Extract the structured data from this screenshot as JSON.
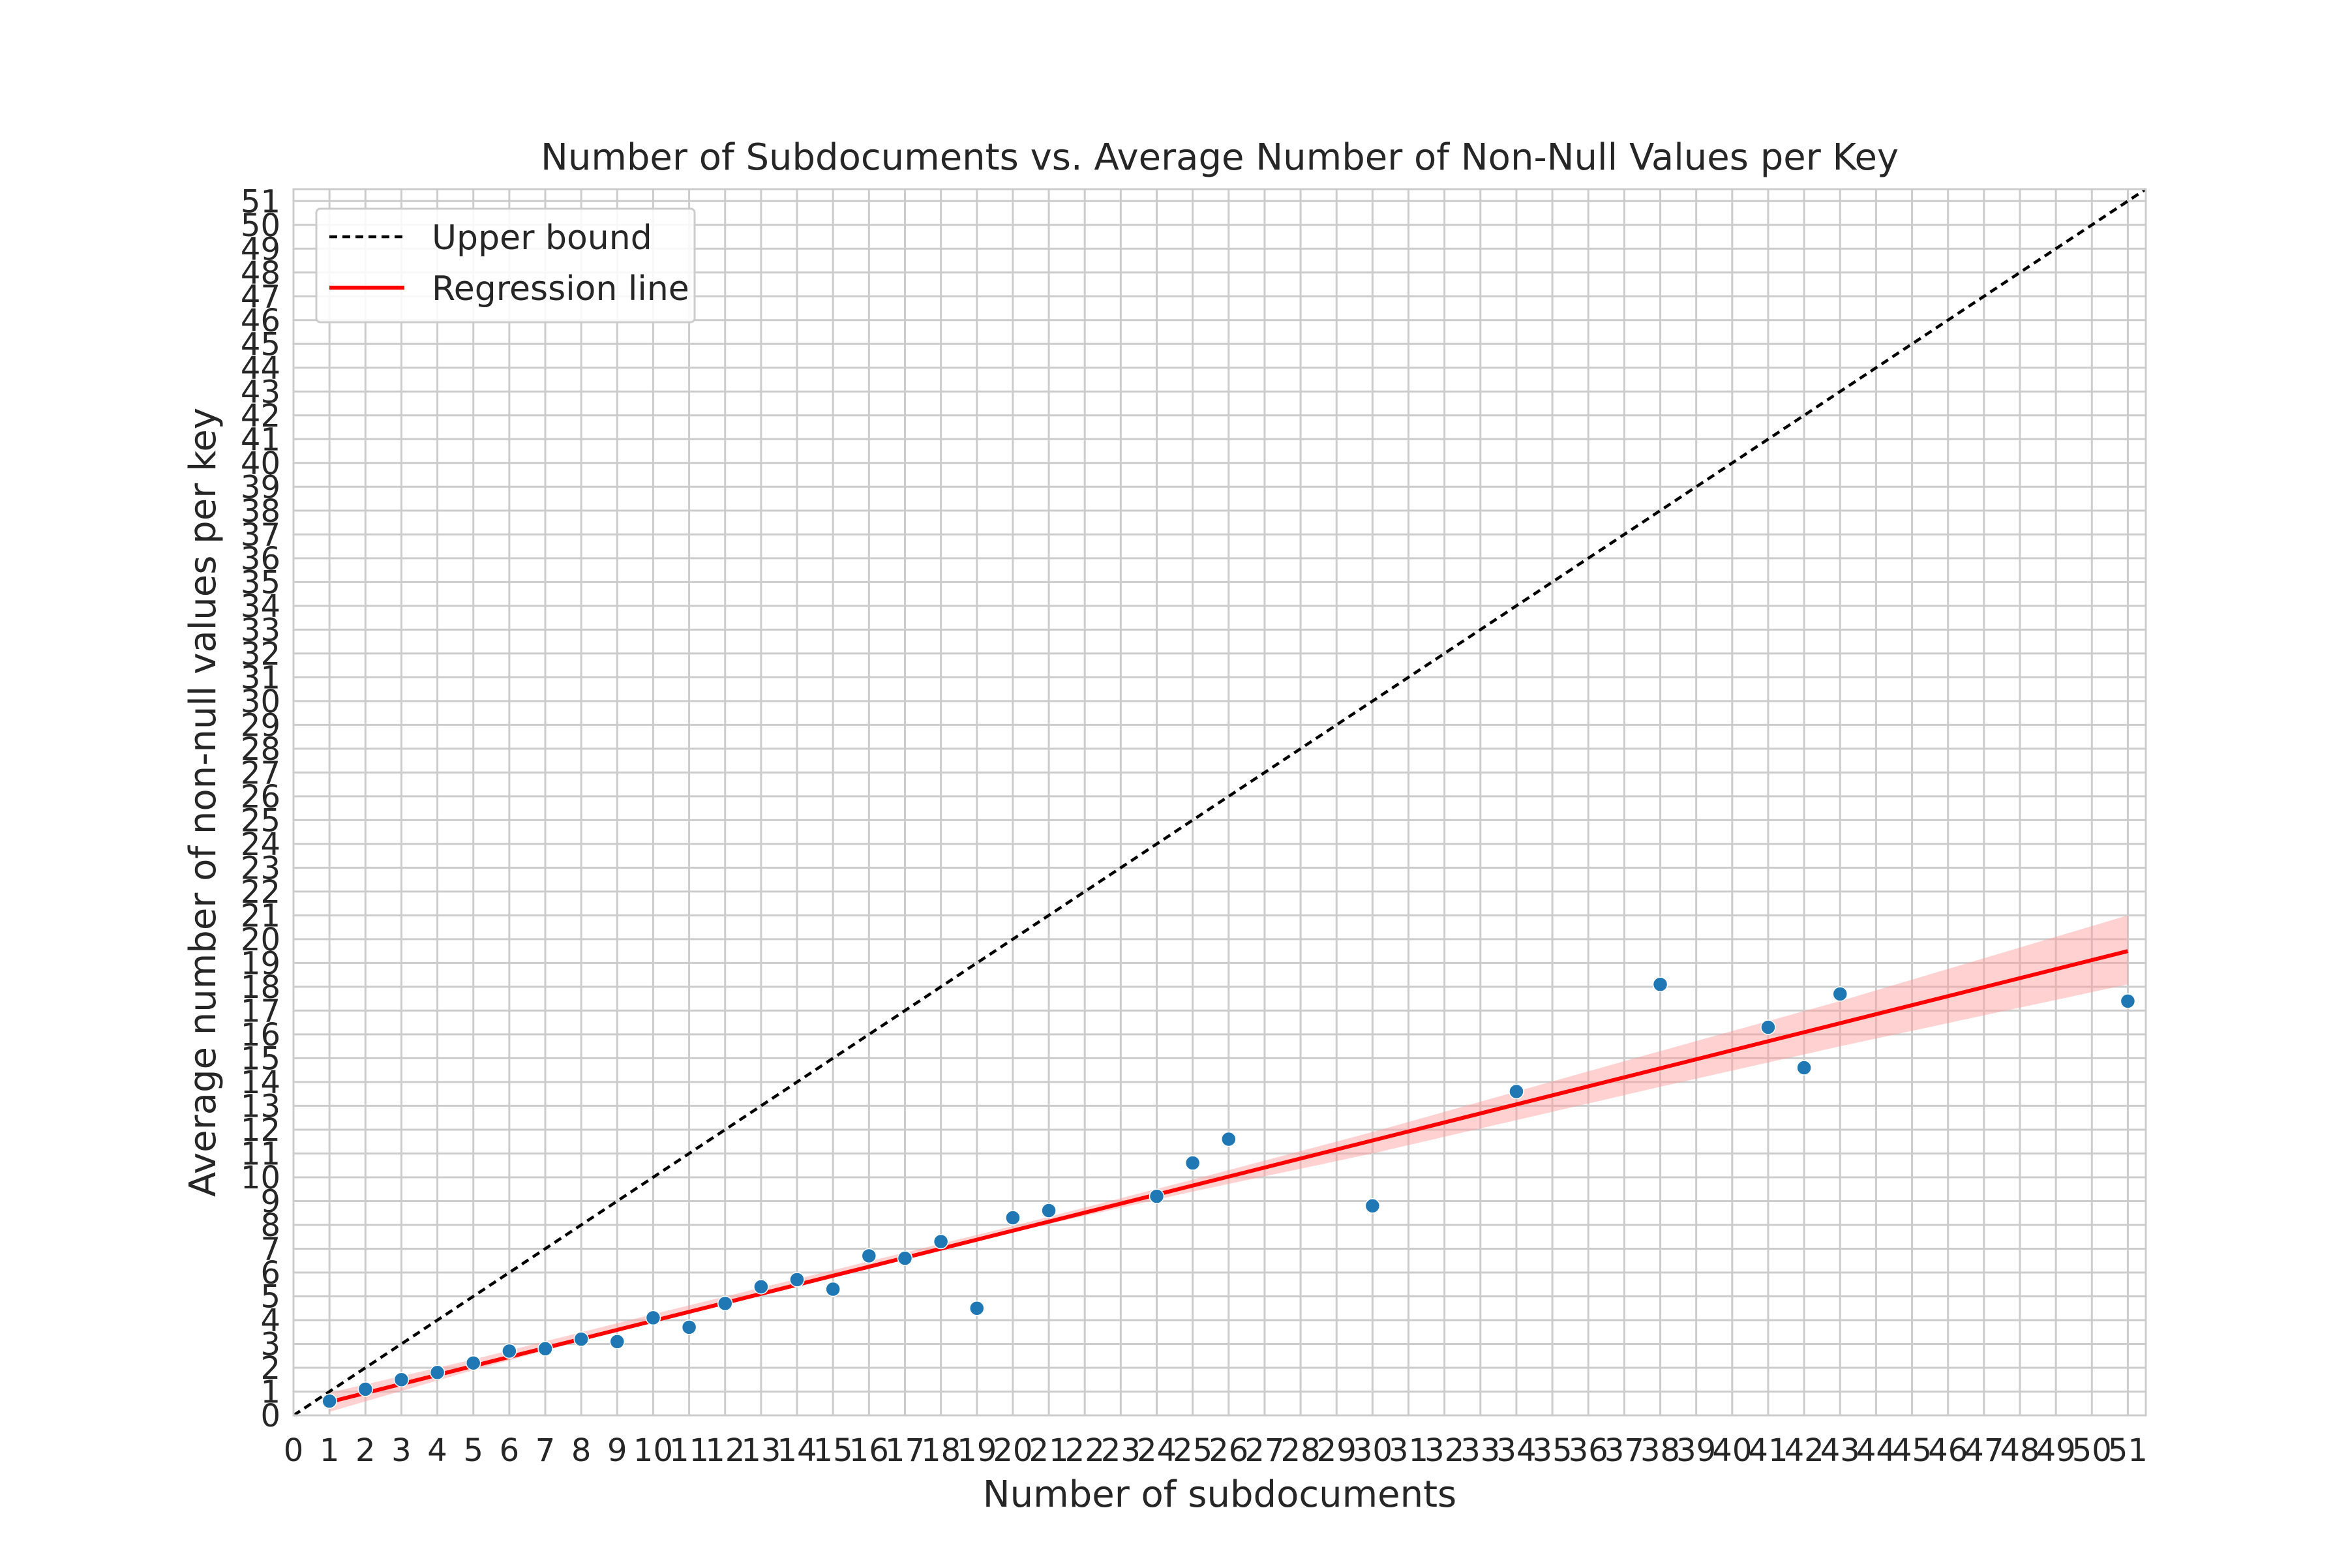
{
  "chart_data": {
    "type": "scatter",
    "title": "Number of Subdocuments vs. Average Number of Non-Null Values per Key",
    "xlabel": "Number of subdocuments",
    "ylabel": "Average number of non-null values per key",
    "xlim": [
      0,
      51.5
    ],
    "ylim": [
      0,
      51.5
    ],
    "xticks": [
      0,
      1,
      2,
      3,
      4,
      5,
      6,
      7,
      8,
      9,
      10,
      11,
      12,
      13,
      14,
      15,
      16,
      17,
      18,
      19,
      20,
      21,
      22,
      23,
      24,
      25,
      26,
      27,
      28,
      29,
      30,
      31,
      32,
      33,
      34,
      35,
      36,
      37,
      38,
      39,
      40,
      41,
      42,
      43,
      44,
      45,
      46,
      47,
      48,
      49,
      50,
      51
    ],
    "yticks": [
      0,
      1,
      2,
      3,
      4,
      5,
      6,
      7,
      8,
      9,
      10,
      11,
      12,
      13,
      14,
      15,
      16,
      17,
      18,
      19,
      20,
      21,
      22,
      23,
      24,
      25,
      26,
      27,
      28,
      29,
      30,
      31,
      32,
      33,
      34,
      35,
      36,
      37,
      38,
      39,
      40,
      41,
      42,
      43,
      44,
      45,
      46,
      47,
      48,
      49,
      50,
      51
    ],
    "grid": true,
    "legend_position": "top-left",
    "series": [
      {
        "type": "scatter",
        "color": "#1f77b4",
        "x": [
          1,
          2,
          3,
          4,
          5,
          6,
          7,
          8,
          9,
          10,
          11,
          12,
          13,
          14,
          15,
          16,
          17,
          18,
          19,
          20,
          21,
          24,
          25,
          26,
          30,
          34,
          38,
          41,
          42,
          43,
          51
        ],
        "y": [
          0.6,
          1.1,
          1.5,
          1.8,
          2.2,
          2.7,
          2.8,
          3.2,
          3.1,
          4.1,
          3.7,
          4.7,
          5.4,
          5.7,
          5.3,
          6.7,
          6.6,
          7.3,
          4.5,
          8.3,
          8.6,
          9.2,
          10.6,
          11.6,
          8.8,
          13.6,
          18.1,
          16.3,
          14.6,
          17.7,
          17.4
        ]
      },
      {
        "type": "line",
        "name": "Upper bound",
        "color": "#000000",
        "dash": "dashed",
        "x": [
          0,
          51.5
        ],
        "y": [
          0,
          51.5
        ]
      },
      {
        "type": "line",
        "name": "Regression line",
        "color": "#ff0000",
        "x": [
          1,
          51
        ],
        "y": [
          0.56,
          19.5
        ]
      },
      {
        "type": "area",
        "color": "#ff9999",
        "x": [
          1,
          5,
          10,
          15,
          20,
          25,
          30,
          34,
          38,
          43,
          51
        ],
        "lower": [
          0.15,
          1.9,
          3.95,
          5.85,
          7.7,
          9.4,
          11.0,
          12.4,
          13.8,
          15.5,
          18.1
        ],
        "upper": [
          0.95,
          2.35,
          4.25,
          6.1,
          7.95,
          9.9,
          11.9,
          13.6,
          15.3,
          17.4,
          21.0
        ]
      }
    ]
  }
}
